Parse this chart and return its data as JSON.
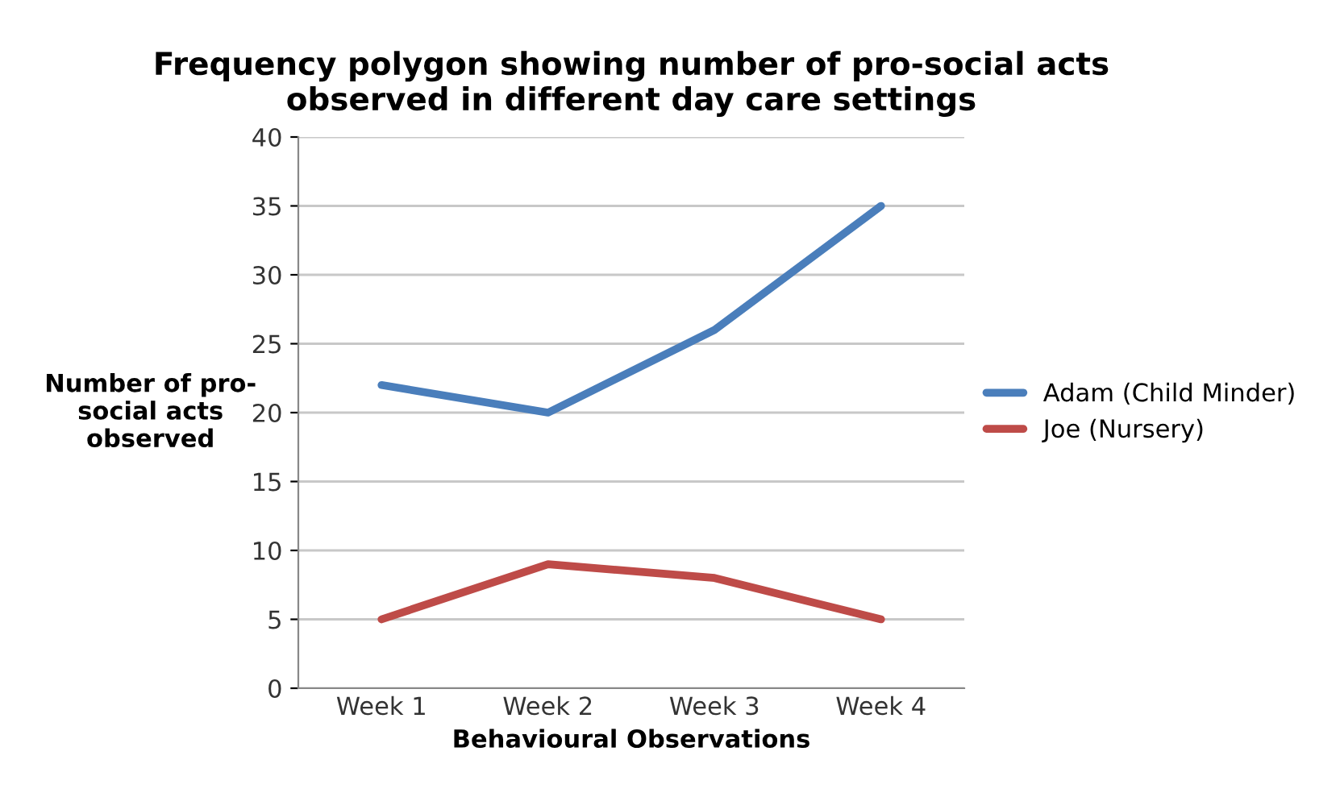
{
  "chart_data": {
    "type": "line",
    "title": "Frequency polygon showing number of pro-social acts\nobserved in different day care settings",
    "xlabel": "Behavioural Observations",
    "ylabel": "Number of pro-\nsocial acts\nobserved",
    "categories": [
      "Week 1",
      "Week 2",
      "Week 3",
      "Week 4"
    ],
    "series": [
      {
        "name": "Adam (Child Minder)",
        "color": "#4a7ebb",
        "values": [
          22,
          20,
          26,
          35
        ]
      },
      {
        "name": "Joe (Nursery)",
        "color": "#be4b48",
        "values": [
          5,
          9,
          8,
          5
        ]
      }
    ],
    "ylim": [
      0,
      40
    ],
    "yticks": [
      0,
      5,
      10,
      15,
      20,
      25,
      30,
      35,
      40
    ],
    "grid": "y",
    "legend": "right",
    "marker": "none",
    "line_style": "solid"
  }
}
